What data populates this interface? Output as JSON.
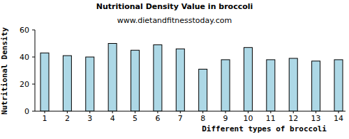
{
  "chart_data": {
    "type": "bar",
    "title": "Nutritional Density Value in broccoli",
    "subtitle": "www.dietandfitnesstoday.com",
    "x_label": "Different types of broccoli",
    "y_label": "Nutritional Density",
    "categories": [
      "1",
      "2",
      "3",
      "4",
      "5",
      "6",
      "7",
      "8",
      "9",
      "10",
      "11",
      "12",
      "13",
      "14"
    ],
    "values": [
      43,
      41,
      40,
      50,
      45,
      49,
      46,
      31,
      38,
      47,
      38,
      39,
      37,
      38
    ],
    "color": "#add8e6",
    "ylim": [
      0,
      60
    ],
    "yticks": [
      0,
      20,
      40,
      60
    ],
    "grid": false
  }
}
